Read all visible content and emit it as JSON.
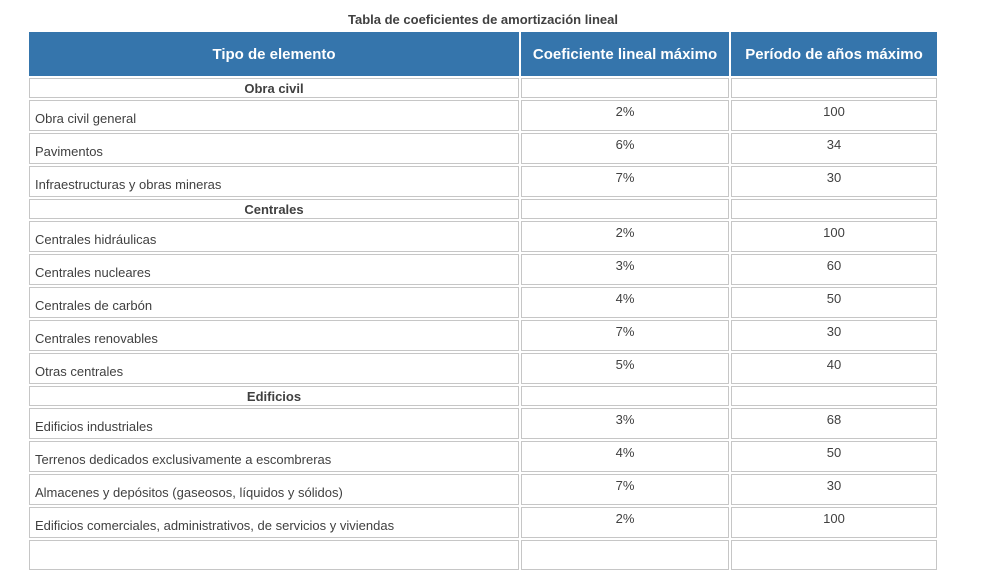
{
  "title": "Tabla de coeficientes de amortización lineal",
  "colors": {
    "header_bg": "#3575ac",
    "header_text": "#ffffff",
    "border": "#c6c6c6",
    "text": "#404040"
  },
  "table": {
    "columns": [
      "Tipo de elemento",
      "Coeficiente lineal máximo",
      "Período de años máximo"
    ],
    "rows": [
      {
        "type": "section",
        "label": "Obra civil",
        "coef": "",
        "years": ""
      },
      {
        "type": "data",
        "label": "Obra civil general",
        "coef": "2%",
        "years": "100"
      },
      {
        "type": "data",
        "label": "Pavimentos",
        "coef": "6%",
        "years": "34"
      },
      {
        "type": "data",
        "label": "Infraestructuras y obras mineras",
        "coef": "7%",
        "years": "30"
      },
      {
        "type": "section",
        "label": "Centrales",
        "coef": "",
        "years": ""
      },
      {
        "type": "data",
        "label": "Centrales hidráulicas",
        "coef": "2%",
        "years": "100"
      },
      {
        "type": "data",
        "label": "Centrales nucleares",
        "coef": "3%",
        "years": "60"
      },
      {
        "type": "data",
        "label": "Centrales de carbón",
        "coef": "4%",
        "years": "50"
      },
      {
        "type": "data",
        "label": "Centrales renovables",
        "coef": "7%",
        "years": "30"
      },
      {
        "type": "data",
        "label": "Otras centrales",
        "coef": "5%",
        "years": "40"
      },
      {
        "type": "section",
        "label": "Edificios",
        "coef": "",
        "years": ""
      },
      {
        "type": "data",
        "label": "Edificios industriales",
        "coef": "3%",
        "years": "68"
      },
      {
        "type": "data",
        "label": "Terrenos dedicados exclusivamente a escombreras",
        "coef": "4%",
        "years": "50"
      },
      {
        "type": "data",
        "label": "Almacenes y depósitos (gaseosos, líquidos y sólidos)",
        "coef": "7%",
        "years": "30"
      },
      {
        "type": "data",
        "label": "Edificios comerciales, administrativos, de servicios y viviendas",
        "coef": "2%",
        "years": "100"
      },
      {
        "type": "partial",
        "label": "",
        "coef": "",
        "years": ""
      }
    ]
  }
}
